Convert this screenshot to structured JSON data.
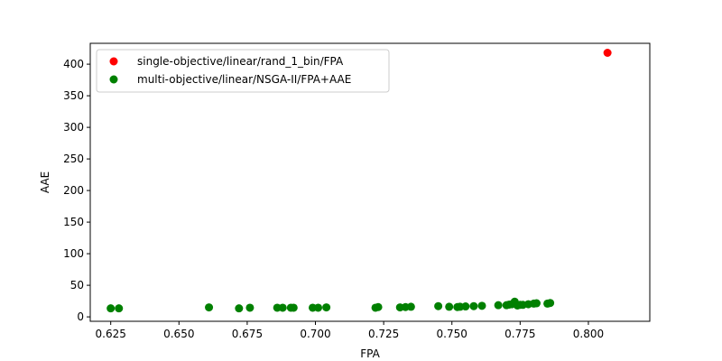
{
  "chart_data": {
    "type": "scatter",
    "title": "",
    "xlabel": "FPA",
    "ylabel": "AAE",
    "xlim": [
      0.6175,
      0.8225
    ],
    "ylim": [
      -7,
      433
    ],
    "xticks": [
      "0.625",
      "0.650",
      "0.675",
      "0.700",
      "0.725",
      "0.750",
      "0.775",
      "0.800"
    ],
    "yticks": [
      "0",
      "50",
      "100",
      "150",
      "200",
      "250",
      "300",
      "350",
      "400"
    ],
    "legend_position": "upper-left",
    "grid": false,
    "series": [
      {
        "name": "single-objective/linear/rand_1_bin/FPA",
        "color": "#ff0000",
        "x": [
          0.807
        ],
        "y": [
          418
        ]
      },
      {
        "name": "multi-objective/linear/NSGA-II/FPA+AAE",
        "color": "#008000",
        "x": [
          0.625,
          0.628,
          0.661,
          0.672,
          0.676,
          0.686,
          0.688,
          0.691,
          0.692,
          0.699,
          0.701,
          0.704,
          0.722,
          0.723,
          0.731,
          0.733,
          0.735,
          0.745,
          0.749,
          0.752,
          0.753,
          0.755,
          0.758,
          0.761,
          0.767,
          0.77,
          0.771,
          0.772,
          0.773,
          0.774,
          0.775,
          0.776,
          0.778,
          0.78,
          0.781,
          0.785,
          0.786
        ],
        "y": [
          13.5,
          13.5,
          15,
          13.5,
          14.5,
          14.5,
          14.5,
          14.5,
          14.5,
          14.5,
          14.5,
          15,
          14.5,
          15.5,
          15,
          15.5,
          16,
          17,
          16,
          15.5,
          16,
          16.5,
          17,
          17.5,
          18.5,
          18.5,
          19.5,
          20,
          24,
          18,
          19,
          19,
          20,
          21,
          21.5,
          21,
          22
        ]
      }
    ]
  }
}
